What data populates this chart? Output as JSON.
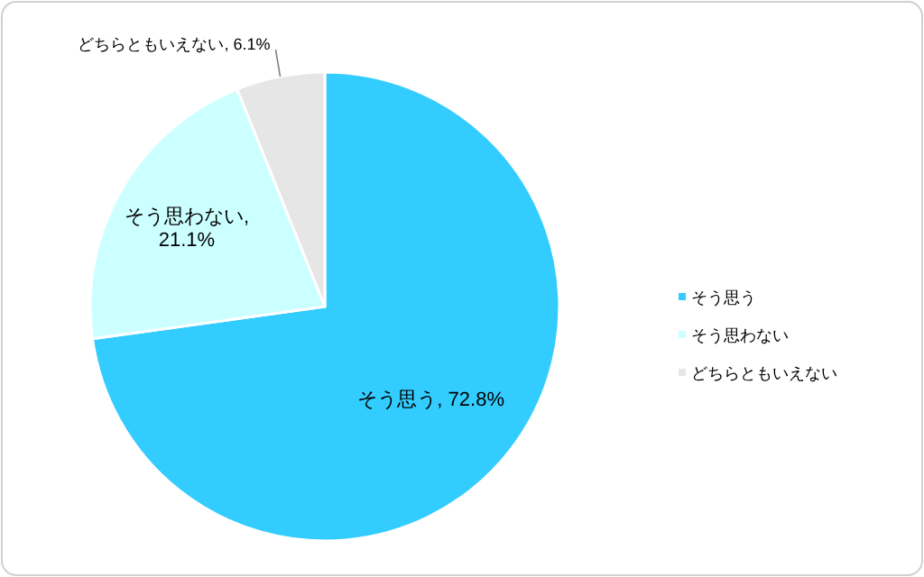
{
  "chart_data": {
    "type": "pie",
    "categories": [
      "そう思う",
      "そう思わない",
      "どちらともいえない"
    ],
    "values": [
      72.8,
      21.1,
      6.1
    ],
    "colors": [
      "#33ccff",
      "#ccffff",
      "#e6e6e6"
    ],
    "value_labels": [
      "そう思う, 72.8%",
      "そう思わない, 21.1%",
      "どちらともいえない, 6.1%"
    ],
    "legend": "right"
  }
}
